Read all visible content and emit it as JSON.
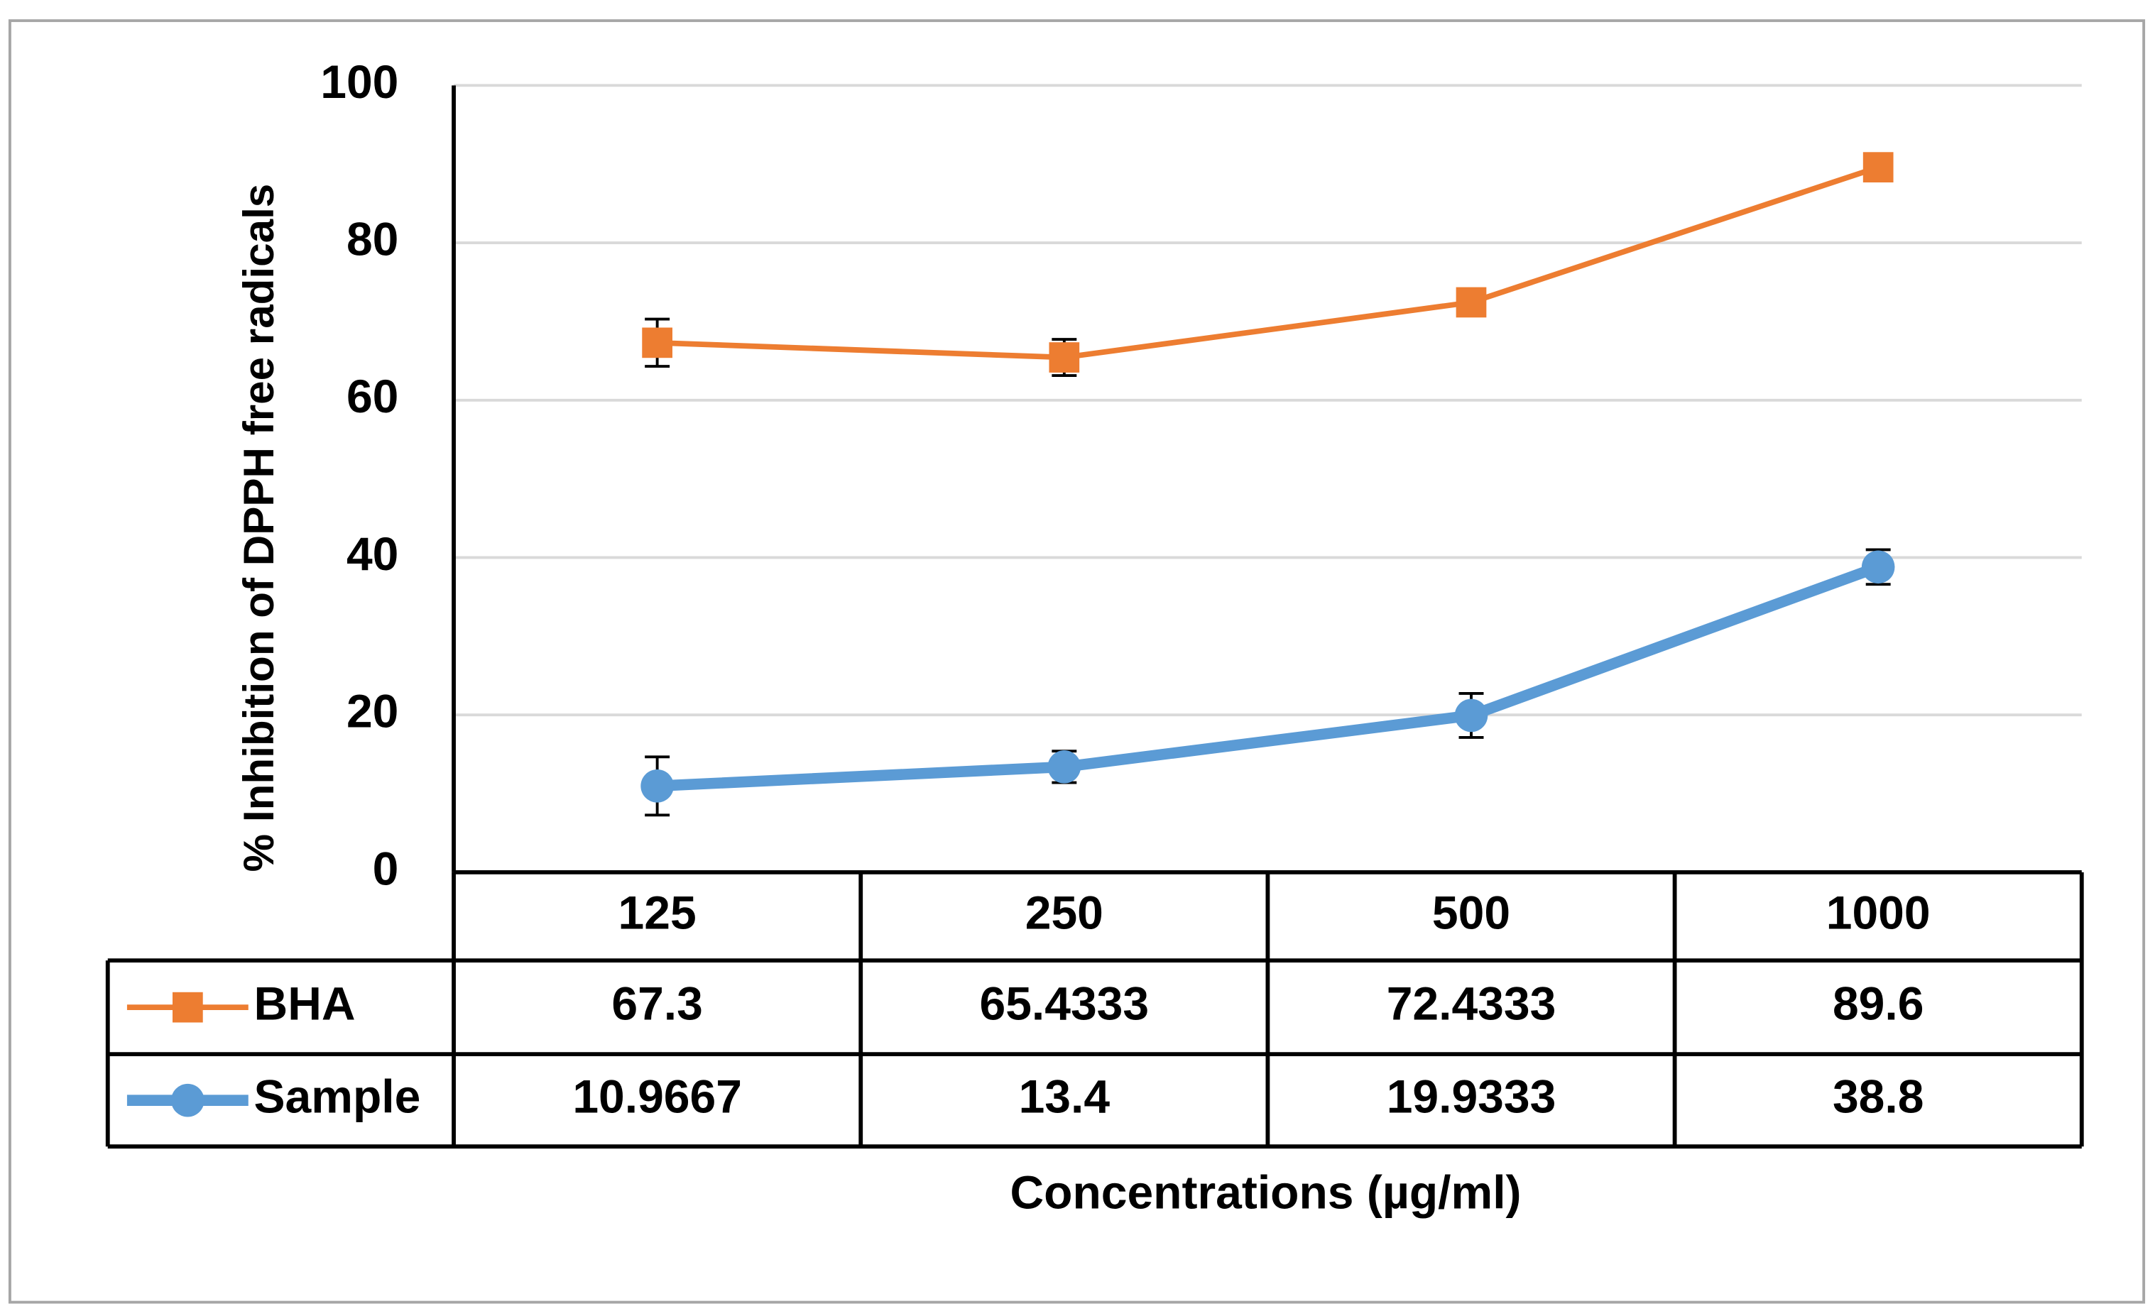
{
  "chart_data": {
    "type": "line",
    "y_axis_label": "% Inhibition of DPPH free radicals",
    "x_axis_label": "Concentrations (µg/ml)",
    "categories": [
      "125",
      "250",
      "500",
      "1000"
    ],
    "series": [
      {
        "name": "BHA",
        "color": "#ED7D31",
        "marker": "square",
        "values": [
          67.3,
          65.4333,
          72.4333,
          89.6
        ],
        "errors": [
          3,
          2.3,
          1,
          0.5
        ]
      },
      {
        "name": "Sample",
        "color": "#5B9BD5",
        "marker": "circle",
        "values": [
          10.9667,
          13.4,
          19.9333,
          38.8
        ],
        "errors": [
          3.7,
          2,
          2.8,
          2.2
        ]
      }
    ],
    "ylim": [
      0,
      100
    ],
    "yticks": [
      0,
      20,
      40,
      60,
      80,
      100
    ],
    "grid": true,
    "data_table": true
  }
}
